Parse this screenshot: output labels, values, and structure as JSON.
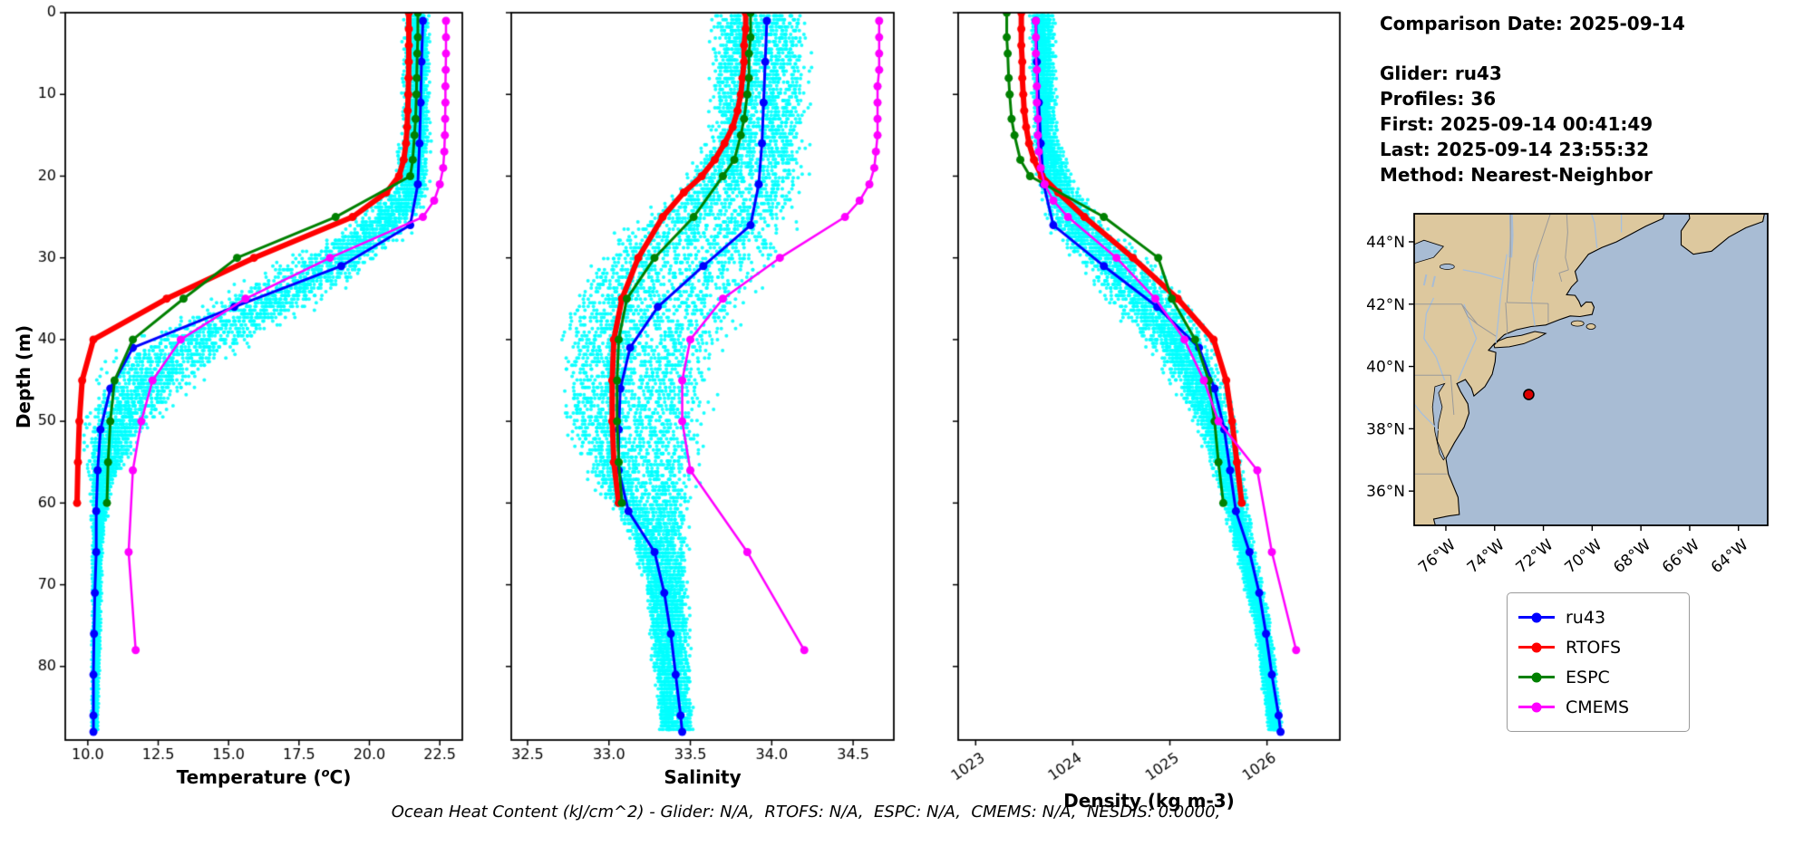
{
  "info": {
    "title": "Comparison Date: 2025-09-14",
    "lines": [
      "Glider: ru43",
      "Profiles: 36",
      "First: 2025-09-14 00:41:49",
      "Last: 2025-09-14 23:55:32",
      "Method: Nearest-Neighbor"
    ]
  },
  "footer": "Ocean Heat Content (kJ/cm^2) - Glider: N/A,  RTOFS: N/A,  ESPC: N/A,  CMEMS: N/A,  NESDIS: 0.0000,",
  "legend": {
    "items": [
      {
        "label": "ru43",
        "color": "#0000ff"
      },
      {
        "label": "RTOFS",
        "color": "#ff0000"
      },
      {
        "label": "ESPC",
        "color": "#008000"
      },
      {
        "label": "CMEMS",
        "color": "#ff00ff"
      }
    ]
  },
  "chart_data": {
    "type": "line",
    "description": "Glider ru43 depth-profile comparison against RTOFS, ESPC and CMEMS models with raw glider scatter (cyan)",
    "panels": [
      {
        "id": "temperature",
        "xlabel": "Temperature (oC)",
        "xlabel_pre": "Temperature (",
        "xlabel_sup": "o",
        "xlabel_post": "C)",
        "ylabel": "Depth (m)",
        "xlim": [
          9.2,
          23.3
        ],
        "ylim": [
          0,
          89
        ],
        "xticks": [
          10.0,
          12.5,
          15.0,
          17.5,
          20.0,
          22.5
        ],
        "xtick_labels": [
          "10.0",
          "12.5",
          "15.0",
          "17.5",
          "20.0",
          "22.5"
        ],
        "yticks": [
          0,
          10,
          20,
          30,
          40,
          50,
          60,
          70,
          80
        ],
        "show_ytick_labels": true,
        "rotate_xticks": false,
        "value_key": "temp"
      },
      {
        "id": "salinity",
        "xlabel": "Salinity",
        "xlim": [
          32.4,
          34.75
        ],
        "ylim": [
          0,
          89
        ],
        "xticks": [
          32.5,
          33.0,
          33.5,
          34.0,
          34.5
        ],
        "xtick_labels": [
          "32.5",
          "33.0",
          "33.5",
          "34.0",
          "34.5"
        ],
        "yticks": [
          0,
          10,
          20,
          30,
          40,
          50,
          60,
          70,
          80
        ],
        "show_ytick_labels": false,
        "rotate_xticks": false,
        "value_key": "sal"
      },
      {
        "id": "density",
        "xlabel": "Density (kg m-3)",
        "xlim": [
          1022.82,
          1026.75
        ],
        "ylim": [
          0,
          89
        ],
        "xticks": [
          1023,
          1024,
          1025,
          1026
        ],
        "xtick_labels": [
          "1023",
          "1024",
          "1025",
          "1026"
        ],
        "yticks": [
          0,
          10,
          20,
          30,
          40,
          50,
          60,
          70,
          80
        ],
        "show_ytick_labels": false,
        "rotate_xticks": true,
        "value_key": "dens"
      }
    ],
    "series": [
      {
        "name": "ru43",
        "color": "#0000ff",
        "lw": 3,
        "ms": 4.5,
        "depths": [
          1,
          6,
          11,
          16,
          21,
          26,
          31,
          36,
          41,
          46,
          51,
          56,
          61,
          66,
          71,
          76,
          81,
          86,
          88
        ],
        "temp": [
          21.9,
          21.85,
          21.82,
          21.78,
          21.72,
          21.45,
          19.0,
          15.2,
          11.6,
          10.8,
          10.45,
          10.35,
          10.3,
          10.3,
          10.25,
          10.22,
          10.2,
          10.2,
          10.2
        ],
        "sal": [
          33.97,
          33.96,
          33.95,
          33.94,
          33.92,
          33.87,
          33.58,
          33.3,
          33.13,
          33.07,
          33.06,
          33.06,
          33.12,
          33.28,
          33.34,
          33.38,
          33.41,
          33.44,
          33.45
        ],
        "dens": [
          1023.62,
          1023.63,
          1023.65,
          1023.67,
          1023.7,
          1023.8,
          1024.32,
          1024.87,
          1025.3,
          1025.46,
          1025.56,
          1025.62,
          1025.68,
          1025.82,
          1025.92,
          1025.99,
          1026.05,
          1026.12,
          1026.14
        ]
      },
      {
        "name": "RTOFS",
        "color": "#ff0000",
        "lw": 6,
        "ms": 4.5,
        "depths": [
          0,
          2,
          4,
          6,
          8,
          10,
          12,
          14,
          16,
          18,
          20,
          22,
          25,
          30,
          35,
          40,
          45,
          50,
          55,
          60
        ],
        "temp": [
          21.4,
          21.4,
          21.4,
          21.4,
          21.39,
          21.38,
          21.36,
          21.34,
          21.3,
          21.22,
          21.05,
          20.6,
          19.4,
          15.9,
          12.8,
          10.2,
          9.8,
          9.7,
          9.65,
          9.62
        ],
        "sal": [
          33.84,
          33.84,
          33.83,
          33.83,
          33.82,
          33.81,
          33.79,
          33.76,
          33.71,
          33.65,
          33.57,
          33.46,
          33.33,
          33.18,
          33.08,
          33.03,
          33.02,
          33.02,
          33.03,
          33.06
        ],
        "dens": [
          1023.47,
          1023.47,
          1023.47,
          1023.48,
          1023.48,
          1023.49,
          1023.5,
          1023.52,
          1023.55,
          1023.6,
          1023.68,
          1023.85,
          1024.12,
          1024.62,
          1025.08,
          1025.45,
          1025.58,
          1025.64,
          1025.69,
          1025.74
        ]
      },
      {
        "name": "ESPC",
        "color": "#008000",
        "lw": 3,
        "ms": 4.5,
        "depths": [
          0,
          3,
          5,
          8,
          10,
          13,
          15,
          18,
          20,
          25,
          30,
          35,
          40,
          45,
          50,
          55,
          60
        ],
        "temp": [
          21.72,
          21.72,
          21.7,
          21.68,
          21.67,
          21.64,
          21.6,
          21.54,
          21.45,
          18.8,
          15.3,
          13.4,
          11.6,
          10.95,
          10.8,
          10.72,
          10.68
        ],
        "sal": [
          33.87,
          33.87,
          33.86,
          33.86,
          33.85,
          33.83,
          33.81,
          33.77,
          33.7,
          33.52,
          33.28,
          33.11,
          33.06,
          33.05,
          33.05,
          33.06,
          33.08
        ],
        "dens": [
          1023.32,
          1023.32,
          1023.33,
          1023.34,
          1023.35,
          1023.37,
          1023.4,
          1023.46,
          1023.56,
          1024.32,
          1024.88,
          1025.02,
          1025.26,
          1025.4,
          1025.46,
          1025.5,
          1025.55
        ]
      },
      {
        "name": "CMEMS",
        "color": "#ff00ff",
        "lw": 2.5,
        "ms": 4.5,
        "depths": [
          1,
          3,
          5,
          7,
          9,
          11,
          13,
          15,
          17,
          19,
          21,
          23,
          25,
          30,
          35,
          40,
          45,
          50,
          56,
          66,
          78
        ],
        "temp": [
          22.72,
          22.72,
          22.72,
          22.71,
          22.7,
          22.7,
          22.69,
          22.68,
          22.66,
          22.62,
          22.5,
          22.3,
          21.9,
          18.6,
          15.6,
          13.3,
          12.3,
          11.9,
          11.6,
          11.45,
          11.7
        ],
        "sal": [
          34.66,
          34.66,
          34.66,
          34.66,
          34.65,
          34.65,
          34.65,
          34.65,
          34.64,
          34.63,
          34.6,
          34.54,
          34.45,
          34.05,
          33.7,
          33.5,
          33.45,
          33.45,
          33.5,
          33.85,
          34.2
        ],
        "dens": [
          1023.62,
          1023.62,
          1023.62,
          1023.63,
          1023.63,
          1023.63,
          1023.64,
          1023.64,
          1023.65,
          1023.67,
          1023.71,
          1023.8,
          1023.95,
          1024.45,
          1024.85,
          1025.15,
          1025.35,
          1025.5,
          1025.9,
          1026.05,
          1026.3
        ]
      }
    ],
    "glider_scatter": {
      "color": "#00ffff",
      "alpha": 0.9,
      "profiles": 36,
      "dot_r": 2.0,
      "step": 0.45,
      "max_depth": 88,
      "temp": {
        "d": [
          0,
          15,
          22,
          27,
          32,
          37,
          42,
          47,
          52,
          58,
          65,
          88
        ],
        "mean": [
          21.7,
          21.68,
          21.4,
          20.2,
          18.0,
          15.6,
          13.0,
          11.7,
          10.9,
          10.5,
          10.35,
          10.25
        ],
        "spread": [
          0.55,
          0.55,
          0.8,
          1.4,
          2.1,
          2.4,
          2.3,
          1.8,
          1.1,
          0.45,
          0.2,
          0.12
        ]
      },
      "sal": {
        "d": [
          0,
          15,
          22,
          27,
          32,
          37,
          42,
          50,
          57,
          63,
          70,
          88
        ],
        "mean": [
          33.95,
          33.93,
          33.82,
          33.62,
          33.44,
          33.3,
          33.22,
          33.18,
          33.22,
          33.3,
          33.36,
          33.42
        ],
        "spread": [
          0.28,
          0.28,
          0.38,
          0.5,
          0.52,
          0.5,
          0.45,
          0.42,
          0.32,
          0.18,
          0.12,
          0.1
        ]
      },
      "dens": {
        "d": [
          0,
          15,
          22,
          27,
          32,
          37,
          42,
          50,
          57,
          65,
          75,
          88
        ],
        "mean": [
          1023.68,
          1023.7,
          1023.85,
          1024.1,
          1024.5,
          1024.85,
          1025.15,
          1025.45,
          1025.6,
          1025.75,
          1025.95,
          1026.08
        ],
        "spread": [
          0.12,
          0.12,
          0.2,
          0.3,
          0.38,
          0.38,
          0.3,
          0.2,
          0.14,
          0.1,
          0.08,
          0.07
        ]
      }
    }
  },
  "map": {
    "extent": [
      -77.3,
      -62.8,
      34.9,
      44.9
    ],
    "xticks": [
      -76,
      -74,
      -72,
      -70,
      -68,
      -66,
      -64
    ],
    "xtick_labels": [
      "76°W",
      "74°W",
      "72°W",
      "70°W",
      "68°W",
      "66°W",
      "64°W"
    ],
    "yticks": [
      44,
      42,
      40,
      38,
      36
    ],
    "ytick_labels": [
      "44°N",
      "42°N",
      "40°N",
      "38°N",
      "36°N"
    ],
    "marker": {
      "lon": -72.6,
      "lat": 39.1,
      "color": "#dd0000",
      "edge": "#000000"
    },
    "colors": {
      "ocean": "#a8bcd4",
      "land": "#ddc89e",
      "coast": "#000000",
      "borders": "#9a9a9a",
      "rivers": "#a6bfdd"
    }
  }
}
